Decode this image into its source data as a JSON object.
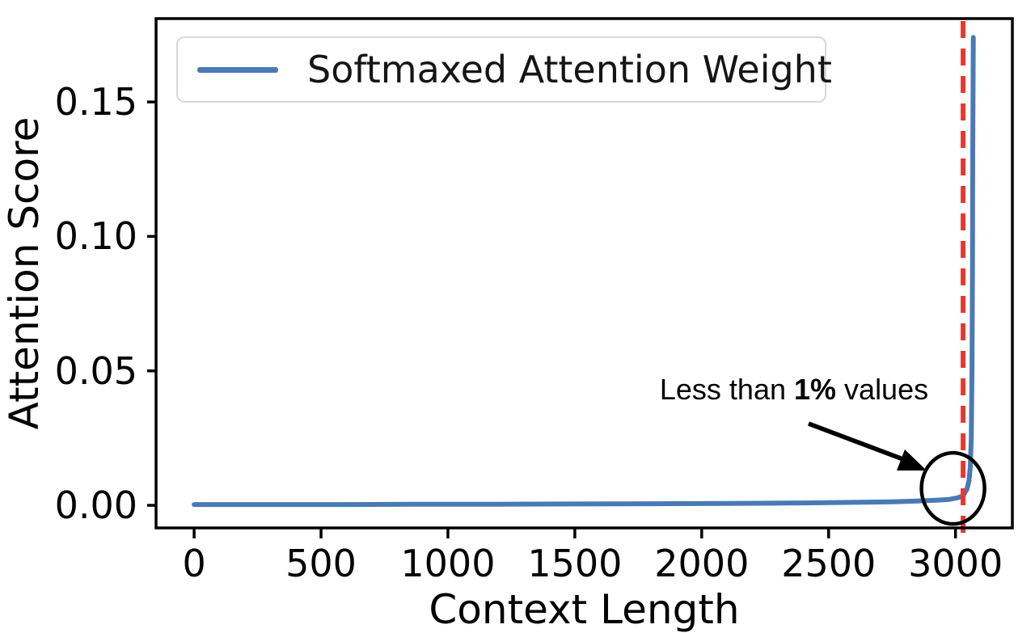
{
  "chart_data": {
    "type": "line",
    "title": "",
    "xlabel": "Context Length",
    "ylabel": "Attention Score",
    "xlim": [
      -150,
      3224
    ],
    "ylim": [
      -0.0084,
      0.181
    ],
    "grid": false,
    "xticks": [
      0,
      500,
      1000,
      1500,
      2000,
      2500,
      3000
    ],
    "xtick_labels": [
      "0",
      "500",
      "1000",
      "1500",
      "2000",
      "2500",
      "3000"
    ],
    "ytick_values": [
      0,
      0.05,
      0.1,
      0.15
    ],
    "ytick_labels": [
      "0.00",
      "0.05",
      "0.10",
      "0.15"
    ],
    "legend": {
      "position": "upper left"
    },
    "series": [
      {
        "name": "Softmaxed Attention Weight",
        "color": "#4a7ab5",
        "points": [
          [
            0,
            0.0003
          ],
          [
            300,
            0.0003
          ],
          [
            600,
            0.0003
          ],
          [
            900,
            0.0004
          ],
          [
            1200,
            0.0004
          ],
          [
            1500,
            0.0005
          ],
          [
            1800,
            0.0006
          ],
          [
            2100,
            0.0007
          ],
          [
            2400,
            0.0009
          ],
          [
            2600,
            0.0011
          ],
          [
            2750,
            0.0013
          ],
          [
            2850,
            0.0016
          ],
          [
            2925,
            0.0019
          ],
          [
            2975,
            0.0022
          ],
          [
            3010,
            0.0028
          ],
          [
            3030,
            0.0036
          ],
          [
            3045,
            0.006
          ],
          [
            3053,
            0.009
          ],
          [
            3058,
            0.014
          ],
          [
            3062,
            0.025
          ],
          [
            3065,
            0.05
          ],
          [
            3067,
            0.09
          ],
          [
            3068,
            0.13
          ],
          [
            3069,
            0.155
          ],
          [
            3070,
            0.174
          ]
        ]
      }
    ],
    "vline": {
      "x": 3030,
      "color": "#e5382f",
      "style": "dashed"
    },
    "annotation": {
      "text_prefix": "Less than ",
      "text_bold": "1%",
      "text_suffix": " values",
      "circle_center": {
        "x": 2990,
        "y": 0.0063
      },
      "arrow": "from text to circle"
    },
    "colors": {
      "axis": "#000000",
      "tick_text": "#000000"
    }
  }
}
